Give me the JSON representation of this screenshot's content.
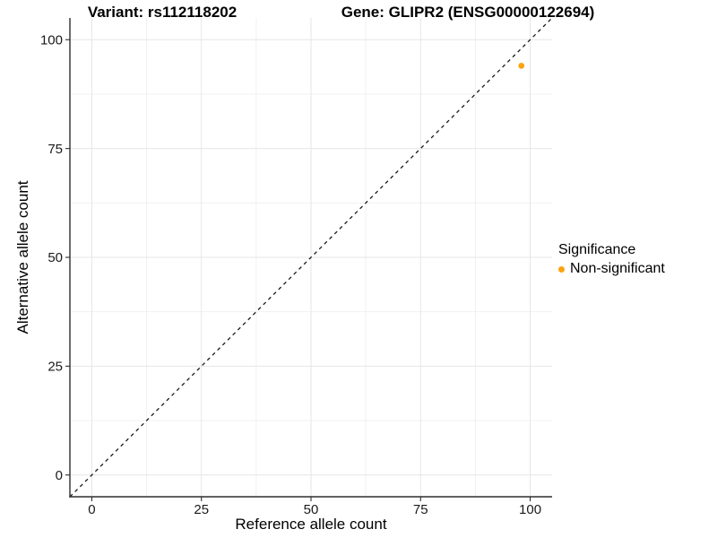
{
  "titles": {
    "variant": "Variant: rs112118202",
    "gene": "Gene: GLIPR2 (ENSG00000122694)"
  },
  "chart_data": {
    "type": "scatter",
    "xlabel": "Reference allele count",
    "ylabel": "Alternative allele count",
    "xlim": [
      -5,
      105
    ],
    "ylim": [
      -5,
      105
    ],
    "xticks": [
      0,
      25,
      50,
      75,
      100
    ],
    "yticks": [
      0,
      25,
      50,
      75,
      100
    ],
    "xticks_minor": [
      12.5,
      37.5,
      62.5,
      87.5
    ],
    "yticks_minor": [
      12.5,
      37.5,
      62.5,
      87.5
    ],
    "grid": "major+minor",
    "points": [
      {
        "x": 98,
        "y": 94,
        "series": "Non-significant"
      }
    ],
    "identity_line": {
      "slope": 1,
      "intercept": 0,
      "style": "dashed"
    },
    "legend": {
      "title": "Significance",
      "position": "right",
      "items": [
        {
          "label": "Non-significant",
          "color": "#FCA311",
          "marker": "circle"
        }
      ]
    },
    "colors": {
      "point": "#FCA311",
      "grid_major": "#E6E6E6",
      "grid_minor": "#F1F1F1",
      "axis": "#2E2E2E",
      "identity_line": "#1A1A1A",
      "tick_text": "#1A1A1A",
      "background": "#FFFFFF"
    }
  }
}
